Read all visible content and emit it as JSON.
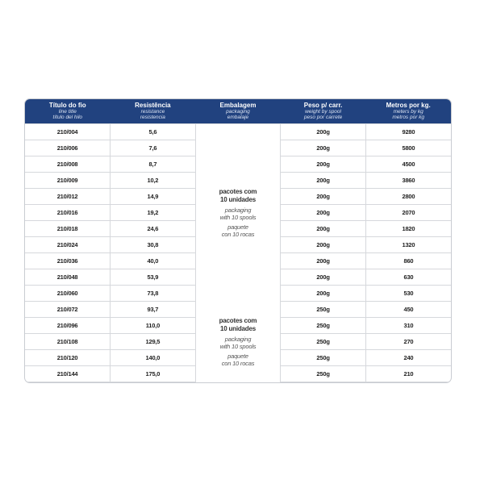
{
  "header": {
    "columns": [
      {
        "title": "Título do fio",
        "sub1": "line title",
        "sub2": "título del hilo"
      },
      {
        "title": "Resistência",
        "sub1": "resistance",
        "sub2": "resistencia"
      },
      {
        "title": "Embalagem",
        "sub1": "packaging",
        "sub2": "embalaje"
      },
      {
        "title": "Peso p/ carr.",
        "sub1": "weight by spool",
        "sub2": "peso por carrete"
      },
      {
        "title": "Metros por kg.",
        "sub1": "meters by kg",
        "sub2": "metros por kg"
      }
    ]
  },
  "packaging": {
    "pt1": "pacotes com",
    "pt2": "10 unidades",
    "en1": "packaging",
    "en2": "with 10 spools",
    "es1": "paquete",
    "es2": "con 10 rocas"
  },
  "rows": [
    {
      "title": "210/004",
      "res": "5,6",
      "weight": "200g",
      "meters": "9280"
    },
    {
      "title": "210/006",
      "res": "7,6",
      "weight": "200g",
      "meters": "5800"
    },
    {
      "title": "210/008",
      "res": "8,7",
      "weight": "200g",
      "meters": "4500"
    },
    {
      "title": "210/009",
      "res": "10,2",
      "weight": "200g",
      "meters": "3860"
    },
    {
      "title": "210/012",
      "res": "14,9",
      "weight": "200g",
      "meters": "2800"
    },
    {
      "title": "210/016",
      "res": "19,2",
      "weight": "200g",
      "meters": "2070"
    },
    {
      "title": "210/018",
      "res": "24,6",
      "weight": "200g",
      "meters": "1820"
    },
    {
      "title": "210/024",
      "res": "30,8",
      "weight": "200g",
      "meters": "1320"
    },
    {
      "title": "210/036",
      "res": "40,0",
      "weight": "200g",
      "meters": "860"
    },
    {
      "title": "210/048",
      "res": "53,9",
      "weight": "200g",
      "meters": "630"
    },
    {
      "title": "210/060",
      "res": "73,8",
      "weight": "200g",
      "meters": "530"
    },
    {
      "title": "210/072",
      "res": "93,7",
      "weight": "250g",
      "meters": "450"
    },
    {
      "title": "210/096",
      "res": "110,0",
      "weight": "250g",
      "meters": "310"
    },
    {
      "title": "210/108",
      "res": "129,5",
      "weight": "250g",
      "meters": "270"
    },
    {
      "title": "210/120",
      "res": "140,0",
      "weight": "250g",
      "meters": "240"
    },
    {
      "title": "210/144",
      "res": "175,0",
      "weight": "250g",
      "meters": "210"
    }
  ]
}
